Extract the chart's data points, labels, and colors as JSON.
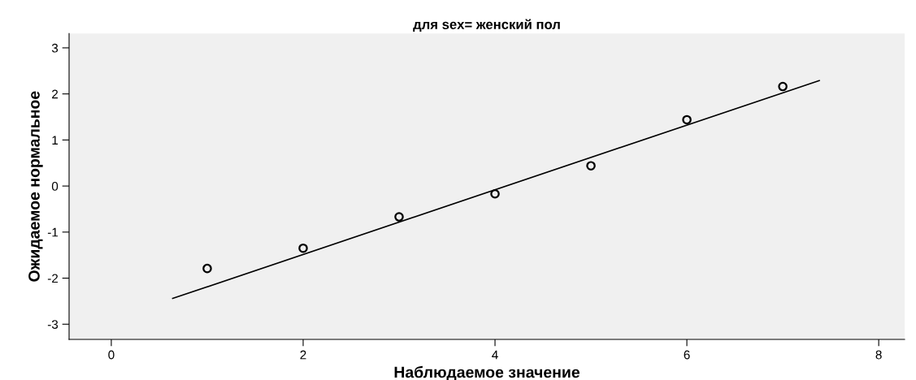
{
  "chart_data": {
    "type": "scatter",
    "title": "для sex= женский пол",
    "xlabel": "Наблюдаемое значение",
    "ylabel": "Ожидаемое нормальное",
    "series": [
      {
        "color": "#000000",
        "x": [
          1,
          2,
          3,
          4,
          5,
          6,
          7
        ],
        "values": [
          -1.79,
          -1.35,
          -0.67,
          -0.17,
          0.44,
          1.44,
          2.16
        ],
        "marker": "circle"
      },
      {
        "type": "line",
        "color": "#000000",
        "x": [
          0.64,
          7.38
        ],
        "values": [
          -2.44,
          2.29
        ],
        "marker": "none",
        "line_style": "solid"
      }
    ],
    "xlim": [
      -0.44,
      8.27
    ],
    "ylim": [
      -3.33,
      3.31
    ],
    "xticks": [
      0,
      2,
      4,
      6,
      8
    ],
    "yticks": [
      -3,
      -2,
      -1,
      0,
      1,
      2,
      3
    ],
    "grid": false,
    "legend": false
  }
}
